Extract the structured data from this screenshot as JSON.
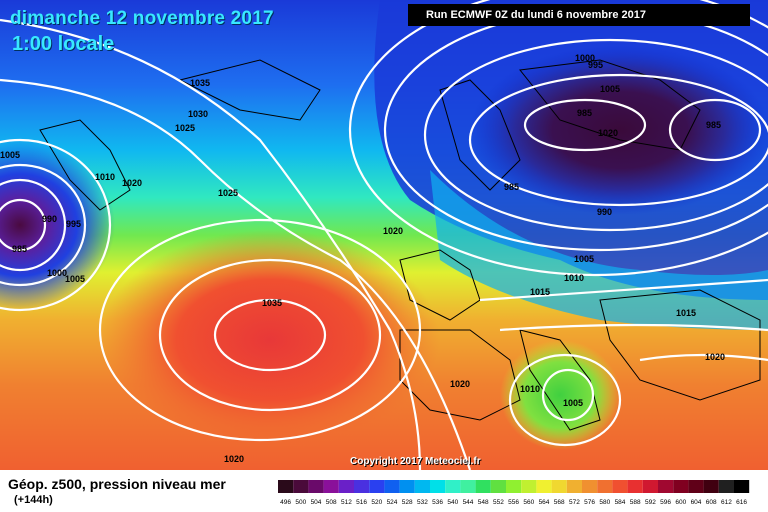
{
  "header": {
    "date": "dimanche 12 novembre 2017",
    "local_time": "1:00 locale",
    "run_info": "Run ECMWF 0Z du lundi 6 novembre 2017"
  },
  "copyright": "Copyright 2017 Meteociel.fr",
  "legend": {
    "title": "Géop. z500, pression niveau mer",
    "subtitle": "(+144h)",
    "scale_values": [
      "496",
      "500",
      "504",
      "508",
      "512",
      "516",
      "520",
      "524",
      "528",
      "532",
      "536",
      "540",
      "544",
      "548",
      "552",
      "556",
      "560",
      "564",
      "568",
      "572",
      "576",
      "580",
      "584",
      "588",
      "592",
      "596",
      "600",
      "604",
      "608",
      "612",
      "616"
    ],
    "scale_colors": [
      "#2a0a1a",
      "#4a0a3a",
      "#6a0a6a",
      "#8a109a",
      "#6a20c8",
      "#4a30e0",
      "#2a40f0",
      "#1060f0",
      "#0090f0",
      "#00b8f0",
      "#00e0e8",
      "#30f0c8",
      "#40f0a0",
      "#30e060",
      "#60e040",
      "#90f030",
      "#c0f030",
      "#f0f030",
      "#f0d830",
      "#f0b030",
      "#f09030",
      "#f07030",
      "#f05030",
      "#e83030",
      "#d01830",
      "#a00830",
      "#800020",
      "#600018",
      "#400010",
      "#202020",
      "#000000"
    ]
  },
  "isobar_labels": [
    "1035",
    "1030",
    "1025",
    "1005",
    "1010",
    "1020",
    "1025",
    "985",
    "990",
    "995",
    "1005",
    "1000",
    "1035",
    "1020",
    "1000",
    "995",
    "985",
    "985",
    "985",
    "990",
    "1005",
    "1010",
    "1015",
    "1015",
    "1020",
    "1020",
    "1010",
    "1005",
    "1020",
    "1020",
    "1005"
  ],
  "chart_data": {
    "type": "heatmap",
    "title": "Géop. z500, pression niveau mer",
    "subtitle": "(+144h)",
    "valid_time": "dimanche 12 novembre 2017 1:00 locale",
    "model_run": "Run ECMWF 0Z du lundi 6 novembre 2017",
    "colorbar_values": [
      496,
      500,
      504,
      508,
      512,
      516,
      520,
      524,
      528,
      532,
      536,
      540,
      544,
      548,
      552,
      556,
      560,
      564,
      568,
      572,
      576,
      580,
      584,
      588,
      592,
      596,
      600,
      604,
      608,
      612,
      616
    ],
    "pressure_centers": [
      {
        "label": "985",
        "type": "low",
        "region": "north-west Atlantic"
      },
      {
        "label": "985",
        "type": "low",
        "region": "Scandinavia"
      },
      {
        "label": "1035",
        "type": "high",
        "region": "central Atlantic"
      },
      {
        "label": "1005",
        "type": "low",
        "region": "Italy"
      }
    ]
  }
}
